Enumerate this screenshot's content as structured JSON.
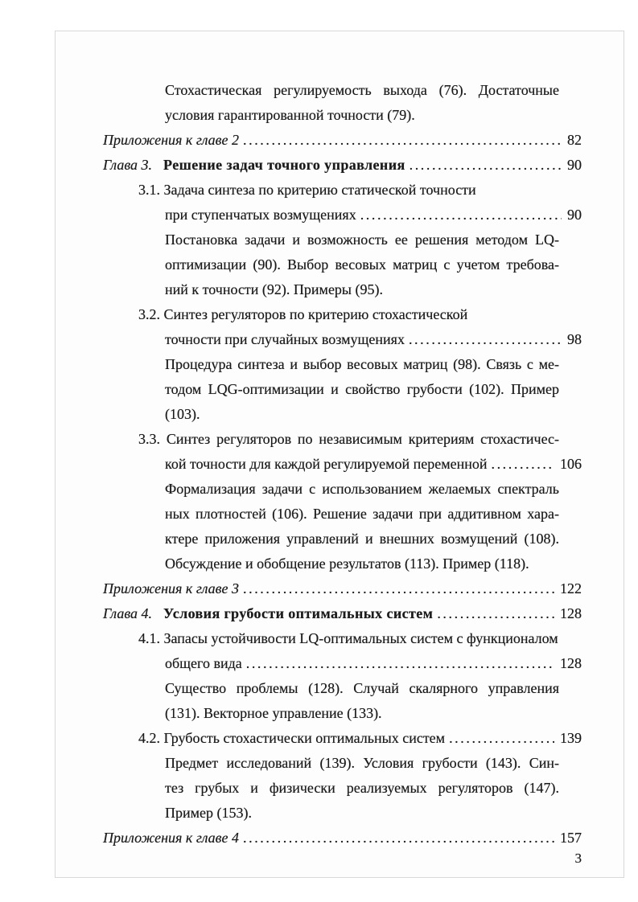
{
  "page": {
    "footer_page_number": "3"
  },
  "colors": {
    "text": "#1b1b1b",
    "page_background": "#fdfdfd",
    "page_border": "#d8d8d8"
  },
  "toc": {
    "lines": [
      {
        "indent": 2,
        "justify": true,
        "text": "Стохастическая регулируемость выхода (76). Достаточные"
      },
      {
        "indent": 2,
        "text": "условия гарантированной точности (79)."
      },
      {
        "indent": 0,
        "style": "appendix",
        "text": "Приложения к главе 2",
        "page": "82"
      },
      {
        "indent": 0,
        "style": "chapter",
        "prefix": "Глава 3.",
        "text": "Решение задач точного управления",
        "page": "90"
      },
      {
        "indent": 1,
        "text": "3.1. Задача синтеза по критерию статической точности"
      },
      {
        "indent": 2,
        "text": "при ступенчатых возмущениях",
        "page": "90"
      },
      {
        "indent": 2,
        "justify": true,
        "text": "Постановка задачи и возможность ее решения методом LQ-"
      },
      {
        "indent": 2,
        "justify": true,
        "text": "оптимизации (90). Выбор весовых матриц с учетом требова-"
      },
      {
        "indent": 2,
        "text": "ний к точности (92). Примеры (95)."
      },
      {
        "indent": 1,
        "text": "3.2. Синтез регуляторов по критерию стохастической"
      },
      {
        "indent": 2,
        "text": "точности при случайных возмущениях",
        "page": "98"
      },
      {
        "indent": 2,
        "justify": true,
        "text": "Процедура синтеза и выбор весовых матриц (98). Связь с ме-"
      },
      {
        "indent": 2,
        "justify": true,
        "text": "тодом LQG-оптимизации и свойство грубости (102). Пример"
      },
      {
        "indent": 2,
        "text": "(103)."
      },
      {
        "indent": 1,
        "justify": true,
        "text": "3.3. Синтез регуляторов по независимым критериям стохастичес-"
      },
      {
        "indent": 2,
        "text": "кой точности для каждой регулируемой переменной",
        "page": "106"
      },
      {
        "indent": 2,
        "justify": true,
        "text": "Формализация задачи с использованием желаемых спектраль"
      },
      {
        "indent": 2,
        "justify": true,
        "text": "ных плотностей (106). Решение задачи при аддитивном хара-"
      },
      {
        "indent": 2,
        "justify": true,
        "text": "ктере приложения управлений и внешних возмущений (108)."
      },
      {
        "indent": 2,
        "text": "Обсуждение и обобщение результатов (113). Пример (118)."
      },
      {
        "indent": 0,
        "style": "appendix",
        "text": "Приложения к главе 3",
        "page": "122"
      },
      {
        "indent": 0,
        "style": "chapter",
        "prefix": "Глава 4.",
        "text": "Условия грубости оптимальных систем",
        "page": "128"
      },
      {
        "indent": 1,
        "text": "4.1. Запасы устойчивости LQ-оптимальных систем с функционалом"
      },
      {
        "indent": 2,
        "text": "общего вида",
        "page": "128"
      },
      {
        "indent": 2,
        "justify": true,
        "text": "Существо проблемы (128). Случай скалярного управления"
      },
      {
        "indent": 2,
        "text": "(131). Векторное управление (133)."
      },
      {
        "indent": 1,
        "text": "4.2. Грубость стохастически оптимальных систем",
        "page": "139"
      },
      {
        "indent": 2,
        "justify": true,
        "text": "Предмет исследований (139). Условия грубости (143). Син-"
      },
      {
        "indent": 2,
        "justify": true,
        "text": "тез грубых и физически реализуемых регуляторов (147)."
      },
      {
        "indent": 2,
        "text": "Пример (153)."
      },
      {
        "indent": 0,
        "style": "appendix",
        "text": "Приложения к главе 4",
        "page": "157"
      }
    ]
  }
}
